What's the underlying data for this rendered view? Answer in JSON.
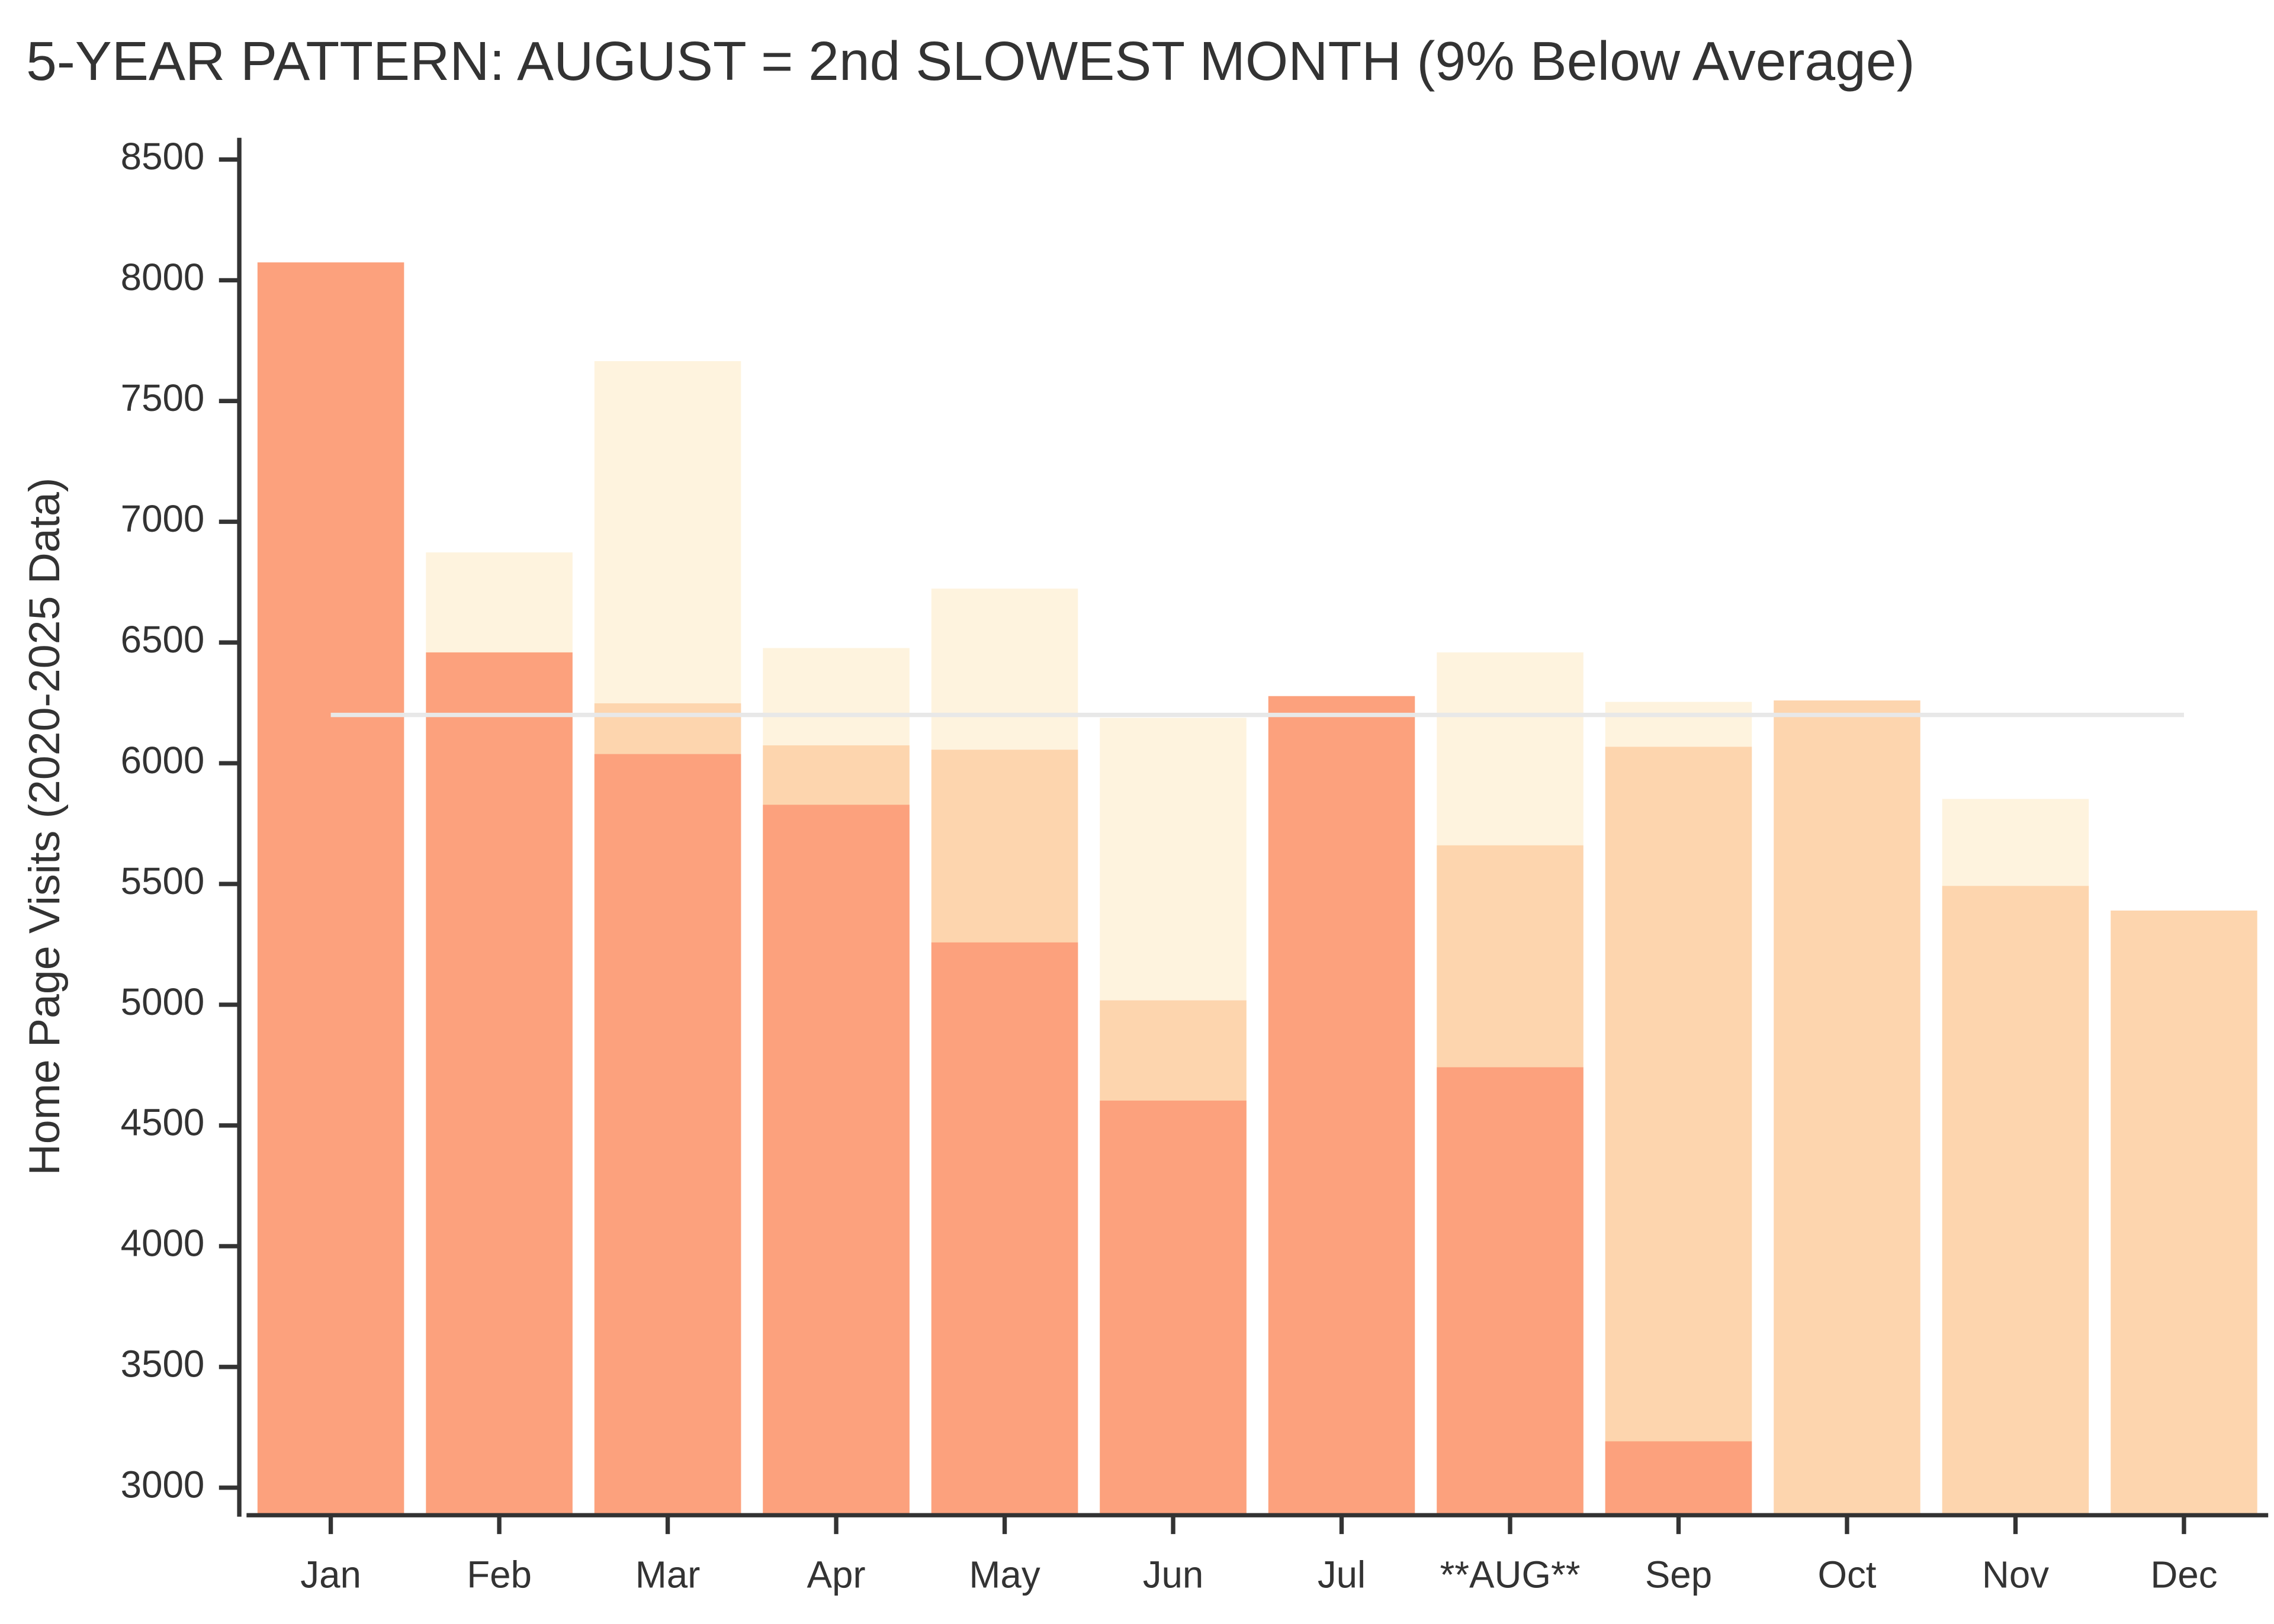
{
  "chart_data": {
    "type": "bar",
    "title": "5-YEAR PATTERN: AUGUST = 2nd SLOWEST MONTH (9% Below Average)",
    "y_label": "Home Page Visits (2020-2025 Data)",
    "categories": [
      "Jan",
      "Feb",
      "Mar",
      "Apr",
      "May",
      "Jun",
      "Jul",
      "**AUG**",
      "Sep",
      "Oct",
      "Nov",
      "Dec"
    ],
    "series": [
      {
        "color": "#fca17d",
        "values": [
          8074,
          6459,
          6038,
          5828,
          5258,
          4603,
          6278,
          4741,
          3192,
          null,
          null,
          null
        ]
      },
      {
        "color": "#fdd5ae",
        "values": [
          null,
          null,
          6248,
          6074,
          6056,
          5018,
          null,
          5660,
          6068,
          6260,
          5492,
          5390
        ]
      },
      {
        "color": "#fef3de",
        "values": [
          null,
          6873,
          7665,
          6477,
          6723,
          6188,
          null,
          6459,
          6254,
          null,
          5852,
          null
        ]
      }
    ],
    "average": 6200,
    "average_color": "#e8e8e8",
    "ylim": [
      2886,
      8590
    ],
    "yticks": [
      3000,
      3500,
      4000,
      4500,
      5000,
      5500,
      6000,
      6500,
      7000,
      7500,
      8000,
      8500
    ],
    "grid": false
  }
}
